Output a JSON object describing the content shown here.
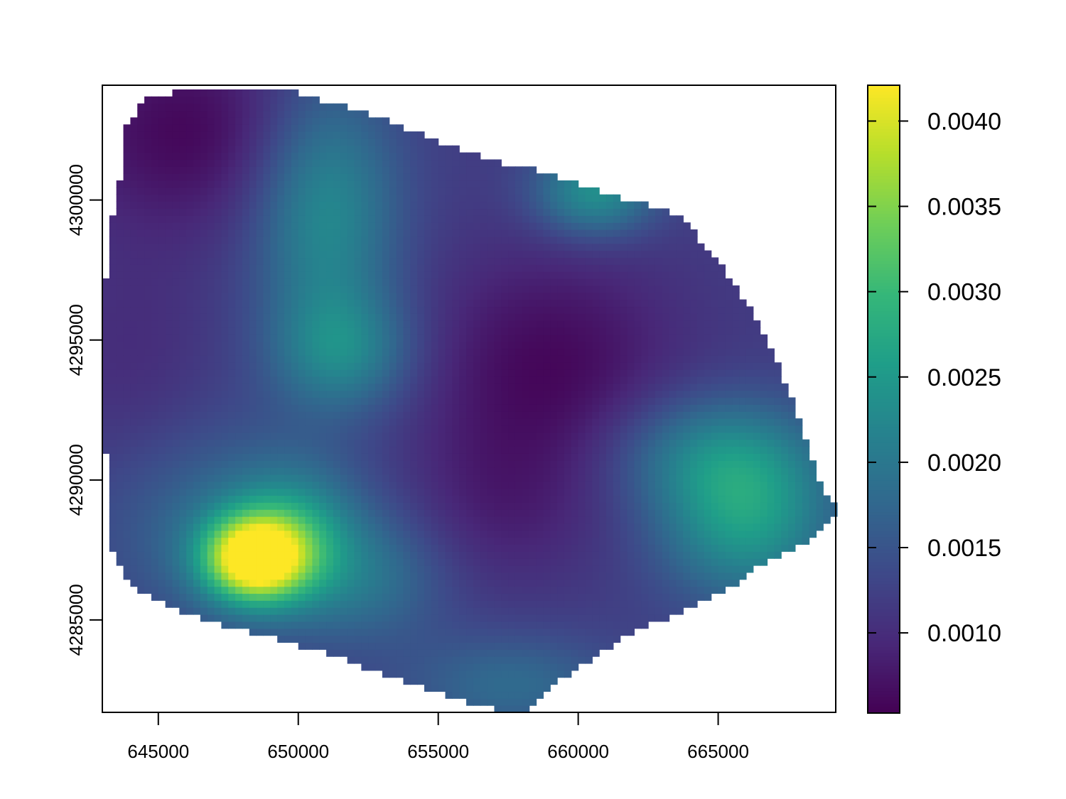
{
  "chart_data": {
    "type": "heatmap",
    "title": "",
    "xlabel": "",
    "ylabel": "",
    "xlim": [
      643000,
      669200
    ],
    "ylim": [
      4281700,
      4304100
    ],
    "x_ticks": [
      645000,
      650000,
      655000,
      660000,
      665000
    ],
    "x_tick_labels": [
      "645000",
      "650000",
      "655000",
      "660000",
      "665000"
    ],
    "y_ticks": [
      4285000,
      4290000,
      4295000,
      4300000
    ],
    "y_tick_labels": [
      "4285000",
      "4290000",
      "4295000",
      "4300000"
    ],
    "legend": {
      "placement": "right",
      "range": [
        0.00053,
        0.00421
      ],
      "ticks": [
        0.001,
        0.0015,
        0.002,
        0.0025,
        0.003,
        0.0035,
        0.004
      ],
      "tick_labels": [
        "0.0010",
        "0.0015",
        "0.0020",
        "0.0025",
        "0.0030",
        "0.0035",
        "0.0040"
      ]
    },
    "colormap": [
      "#440154",
      "#482878",
      "#3e4989",
      "#31688e",
      "#26828e",
      "#1f9e89",
      "#35b779",
      "#6ece58",
      "#b5de2b",
      "#fde725"
    ],
    "grid": false,
    "cell_size_data_units": 250,
    "boundary": [
      [
        646700,
        4304000
      ],
      [
        649300,
        4304000
      ],
      [
        651500,
        4303400
      ],
      [
        653000,
        4302900
      ],
      [
        655000,
        4302100
      ],
      [
        657000,
        4301400
      ],
      [
        658800,
        4301000
      ],
      [
        660000,
        4300600
      ],
      [
        661700,
        4300000
      ],
      [
        663200,
        4299700
      ],
      [
        664000,
        4299000
      ],
      [
        665200,
        4297600
      ],
      [
        666200,
        4296000
      ],
      [
        667000,
        4294400
      ],
      [
        667700,
        4292800
      ],
      [
        668300,
        4291000
      ],
      [
        668700,
        4289600
      ],
      [
        669200,
        4289000
      ],
      [
        669200,
        4288800
      ],
      [
        668200,
        4287800
      ],
      [
        666400,
        4286900
      ],
      [
        665200,
        4286000
      ],
      [
        663500,
        4285200
      ],
      [
        662000,
        4284600
      ],
      [
        660800,
        4283800
      ],
      [
        659300,
        4282800
      ],
      [
        658200,
        4281700
      ],
      [
        657600,
        4281700
      ],
      [
        656500,
        4281900
      ],
      [
        655000,
        4282400
      ],
      [
        653200,
        4283000
      ],
      [
        651400,
        4283700
      ],
      [
        649300,
        4284300
      ],
      [
        647400,
        4284800
      ],
      [
        645600,
        4285400
      ],
      [
        644500,
        4285900
      ],
      [
        643900,
        4286500
      ],
      [
        643300,
        4287600
      ],
      [
        643300,
        4290000
      ],
      [
        643000,
        4291800
      ],
      [
        643000,
        4296000
      ],
      [
        643300,
        4299000
      ],
      [
        643600,
        4300500
      ],
      [
        643800,
        4302500
      ],
      [
        644500,
        4303700
      ]
    ],
    "surface": {
      "base": 0.0012,
      "components": [
        {
          "x": 648400,
          "y": 4287200,
          "sx": 1250,
          "sy": 1050,
          "amp": 0.0029
        },
        {
          "x": 649800,
          "y": 4287900,
          "sx": 1500,
          "sy": 1600,
          "amp": 0.0009
        },
        {
          "x": 648000,
          "y": 4288300,
          "sx": 3200,
          "sy": 2400,
          "amp": 0.0007
        },
        {
          "x": 651000,
          "y": 4299600,
          "sx": 1800,
          "sy": 3300,
          "amp": 0.0011
        },
        {
          "x": 651600,
          "y": 4294600,
          "sx": 1700,
          "sy": 1500,
          "amp": 0.0009
        },
        {
          "x": 660600,
          "y": 4300300,
          "sx": 1500,
          "sy": 1100,
          "amp": 0.0012
        },
        {
          "x": 666000,
          "y": 4288600,
          "sx": 2200,
          "sy": 2000,
          "amp": 0.0013
        },
        {
          "x": 664800,
          "y": 4291000,
          "sx": 2600,
          "sy": 1500,
          "amp": 0.0008
        },
        {
          "x": 657600,
          "y": 4282700,
          "sx": 2700,
          "sy": 1300,
          "amp": 0.0006
        },
        {
          "x": 652500,
          "y": 4286500,
          "sx": 2000,
          "sy": 1600,
          "amp": 0.0006
        },
        {
          "x": 659000,
          "y": 4294000,
          "sx": 3200,
          "sy": 3000,
          "amp": -0.0006
        },
        {
          "x": 646000,
          "y": 4302500,
          "sx": 3000,
          "sy": 2500,
          "amp": -0.0006
        },
        {
          "x": 657000,
          "y": 4289000,
          "sx": 2600,
          "sy": 2200,
          "amp": -0.0003
        },
        {
          "x": 644000,
          "y": 4294500,
          "sx": 2000,
          "sy": 3000,
          "amp": -0.0002
        }
      ]
    }
  }
}
